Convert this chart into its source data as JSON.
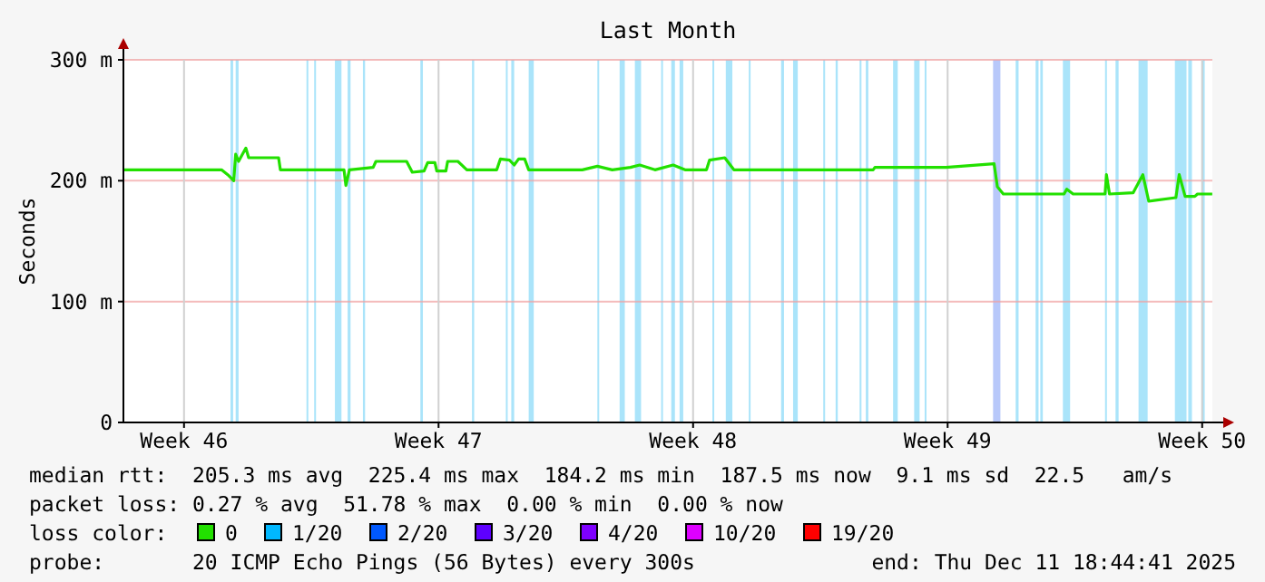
{
  "chart_data": {
    "type": "line",
    "title": "Last Month",
    "ylabel": "Seconds",
    "legend_title": "loss color:",
    "legend": "bottom",
    "grid": true,
    "xlim": [
      "2025-11-11T20:00",
      "2025-12-11T18:44"
    ],
    "xticks": [
      {
        "value": "2025-11-13T12:00",
        "label": "Week 46"
      },
      {
        "value": "2025-11-20T12:00",
        "label": "Week 47"
      },
      {
        "value": "2025-11-27T12:00",
        "label": "Week 48"
      },
      {
        "value": "2025-12-04T12:00",
        "label": "Week 49"
      },
      {
        "value": "2025-12-11T12:00",
        "label": "Week 50"
      }
    ],
    "ylim": [
      0,
      300
    ],
    "yticks": [
      0,
      {
        "value": 100,
        "label": "100 m"
      },
      {
        "value": 200,
        "label": "200 m"
      },
      {
        "value": 300,
        "label": "300 m"
      }
    ],
    "series": [
      {
        "name": "0",
        "color": "#22e000",
        "x": [
          "2025-11-11T20:00",
          "2025-11-14T12:45",
          "2025-11-14T16:50",
          "2025-11-14T20:50",
          "2025-11-14T22:05",
          "2025-11-15T00:00",
          "2025-11-15T04:50",
          "2025-11-15T06:40",
          "2025-11-16T02:25",
          "2025-11-16T03:35",
          "2025-11-17T21:35",
          "2025-11-17T22:50",
          "2025-11-18T01:10",
          "2025-11-18T16:50",
          "2025-11-18T18:40",
          "2025-11-19T14:55",
          "2025-11-19T18:40",
          "2025-11-20T02:25",
          "2025-11-20T04:50",
          "2025-11-20T09:35",
          "2025-11-20T10:50",
          "2025-11-20T16:50",
          "2025-11-20T18:00",
          "2025-11-21T00:45",
          "2025-11-21T06:40",
          "2025-11-22T02:25",
          "2025-11-22T04:50",
          "2025-11-22T10:50",
          "2025-11-22T13:55",
          "2025-11-22T16:50",
          "2025-11-22T20:50",
          "2025-11-22T23:30",
          "2025-11-24T10:50",
          "2025-11-24T20:50",
          "2025-11-25T06:40",
          "2025-11-25T18:40",
          "2025-11-26T00:45",
          "2025-11-26T10:50",
          "2025-11-26T22:50",
          "2025-11-27T06:40",
          "2025-11-27T20:50",
          "2025-11-27T22:50",
          "2025-11-28T08:55",
          "2025-11-28T14:55",
          "2025-12-02T10:50",
          "2025-12-02T12:00",
          "2025-12-04T10:50",
          "2025-12-05T18:40",
          "2025-12-05T20:50",
          "2025-12-06T00:45",
          "2025-12-07T16:50",
          "2025-12-07T18:40",
          "2025-12-07T22:50",
          "2025-12-08T19:55",
          "2025-12-08T20:50",
          "2025-12-08T22:50",
          "2025-12-09T14:25",
          "2025-12-09T20:50",
          "2025-12-10T00:45",
          "2025-12-10T18:40",
          "2025-12-10T20:50",
          "2025-12-11T00:45",
          "2025-12-11T07:10",
          "2025-12-11T08:55",
          "2025-12-11T18:40"
        ],
        "values": [
          209,
          209,
          205,
          200,
          222,
          216,
          227,
          219,
          219,
          209,
          209,
          196,
          209,
          211,
          216,
          216,
          207,
          208,
          215,
          215,
          208,
          208,
          216,
          216,
          209,
          209,
          218,
          217,
          213,
          218,
          218,
          209,
          209,
          212,
          209,
          211,
          213,
          209,
          213,
          209,
          209,
          217,
          219,
          209,
          209,
          211,
          211,
          214,
          195,
          189,
          189,
          193,
          189,
          189,
          205,
          189,
          190,
          205,
          183,
          186,
          205,
          187,
          187,
          189,
          189
        ]
      },
      {
        "name": "1/20",
        "color": "#00b8ff"
      },
      {
        "name": "2/20",
        "color": "#0059ff"
      },
      {
        "name": "3/20",
        "color": "#5e00ff"
      },
      {
        "name": "4/20",
        "color": "#7e00ff"
      },
      {
        "name": "10/20",
        "color": "#dd00ff"
      },
      {
        "name": "19/20",
        "color": "#ff0000"
      }
    ],
    "bands": [
      {
        "axis": "x",
        "from": "2025-11-14T18:40",
        "to": "2025-11-14T20:25",
        "color": "#aae4fa"
      },
      {
        "axis": "x",
        "from": "2025-11-14T22:05",
        "to": "2025-11-15T00:00",
        "color": "#aae4fa"
      },
      {
        "axis": "x",
        "from": "2025-11-16T20:50",
        "to": "2025-11-16T21:35",
        "color": "#aae4fa"
      },
      {
        "axis": "x",
        "from": "2025-11-17T01:55",
        "to": "2025-11-17T02:50",
        "color": "#aae4fa"
      },
      {
        "axis": "x",
        "from": "2025-11-17T15:35",
        "to": "2025-11-17T19:55",
        "color": "#aae4fa"
      },
      {
        "axis": "x",
        "from": "2025-11-18T00:00",
        "to": "2025-11-18T01:55",
        "color": "#aae4fa"
      },
      {
        "axis": "x",
        "from": "2025-11-18T10:05",
        "to": "2025-11-18T11:30",
        "color": "#aae4fa"
      },
      {
        "axis": "x",
        "from": "2025-11-20T00:00",
        "to": "2025-11-20T01:40",
        "color": "#aae4fa"
      },
      {
        "axis": "x",
        "from": "2025-11-21T10:05",
        "to": "2025-11-21T11:30",
        "color": "#aae4fa"
      },
      {
        "axis": "x",
        "from": "2025-11-22T08:25",
        "to": "2025-11-22T09:35",
        "color": "#aae4fa"
      },
      {
        "axis": "x",
        "from": "2025-11-22T12:00",
        "to": "2025-11-22T13:55",
        "color": "#aae4fa"
      },
      {
        "axis": "x",
        "from": "2025-11-22T23:30",
        "to": "2025-11-23T02:50",
        "color": "#aae4fa"
      },
      {
        "axis": "x",
        "from": "2025-11-24T20:50",
        "to": "2025-11-24T21:35",
        "color": "#aae4fa"
      },
      {
        "axis": "x",
        "from": "2025-11-25T11:30",
        "to": "2025-11-25T14:55",
        "color": "#aae4fa"
      },
      {
        "axis": "x",
        "from": "2025-11-25T21:35",
        "to": "2025-11-26T01:40",
        "color": "#aae4fa"
      },
      {
        "axis": "x",
        "from": "2025-11-26T14:55",
        "to": "2025-11-26T16:05",
        "color": "#aae4fa"
      },
      {
        "axis": "x",
        "from": "2025-11-26T21:35",
        "to": "2025-11-27T00:00",
        "color": "#aae4fa"
      },
      {
        "axis": "x",
        "from": "2025-11-27T03:05",
        "to": "2025-11-27T05:30",
        "color": "#aae4fa"
      },
      {
        "axis": "x",
        "from": "2025-11-28T00:45",
        "to": "2025-11-28T01:55",
        "color": "#aae4fa"
      },
      {
        "axis": "x",
        "from": "2025-11-28T09:35",
        "to": "2025-11-28T13:55",
        "color": "#aae4fa"
      },
      {
        "axis": "x",
        "from": "2025-11-29T00:45",
        "to": "2025-11-29T01:55",
        "color": "#aae4fa"
      },
      {
        "axis": "x",
        "from": "2025-11-29T22:05",
        "to": "2025-11-30T00:00",
        "color": "#aae4fa"
      },
      {
        "axis": "x",
        "from": "2025-11-30T06:00",
        "to": "2025-11-30T09:05",
        "color": "#aae4fa"
      },
      {
        "axis": "x",
        "from": "2025-12-01T01:55",
        "to": "2025-12-01T03:05",
        "color": "#aae4fa"
      },
      {
        "axis": "x",
        "from": "2025-12-01T10:05",
        "to": "2025-12-01T11:30",
        "color": "#aae4fa"
      },
      {
        "axis": "x",
        "from": "2025-12-02T01:55",
        "to": "2025-12-02T03:05",
        "color": "#aae4fa"
      },
      {
        "axis": "x",
        "from": "2025-12-02T06:00",
        "to": "2025-12-02T07:40",
        "color": "#aae4fa"
      },
      {
        "axis": "x",
        "from": "2025-12-03T00:00",
        "to": "2025-12-03T03:05",
        "color": "#aae4fa"
      },
      {
        "axis": "x",
        "from": "2025-12-03T13:55",
        "to": "2025-12-03T17:30",
        "color": "#aae4fa"
      },
      {
        "axis": "x",
        "from": "2025-12-03T20:50",
        "to": "2025-12-03T21:35",
        "color": "#aae4fa"
      },
      {
        "axis": "x",
        "from": "2025-12-05T18:00",
        "to": "2025-12-05T22:50",
        "color": "#b8c8fa"
      },
      {
        "axis": "x",
        "from": "2025-12-06T08:55",
        "to": "2025-12-06T10:50",
        "color": "#aae4fa"
      },
      {
        "axis": "x",
        "from": "2025-12-06T22:05",
        "to": "2025-12-07T00:00",
        "color": "#aae4fa"
      },
      {
        "axis": "x",
        "from": "2025-12-07T01:10",
        "to": "2025-12-07T02:50",
        "color": "#aae4fa"
      },
      {
        "axis": "x",
        "from": "2025-12-07T16:05",
        "to": "2025-12-07T20:50",
        "color": "#aae4fa"
      },
      {
        "axis": "x",
        "from": "2025-12-08T19:55",
        "to": "2025-12-08T21:05",
        "color": "#aae4fa"
      },
      {
        "axis": "x",
        "from": "2025-12-09T02:50",
        "to": "2025-12-09T04:50",
        "color": "#aae4fa"
      },
      {
        "axis": "x",
        "from": "2025-12-09T18:00",
        "to": "2025-12-10T00:00",
        "color": "#aae4fa"
      },
      {
        "axis": "x",
        "from": "2025-12-10T18:00",
        "to": "2025-12-11T01:40",
        "color": "#aae4fa"
      },
      {
        "axis": "x",
        "from": "2025-12-11T02:50",
        "to": "2025-12-11T05:15",
        "color": "#aae4fa"
      },
      {
        "axis": "x",
        "from": "2025-12-11T11:30",
        "to": "2025-12-11T13:40",
        "color": "#aae4fa"
      }
    ],
    "annotations": [
      "median rtt:  205.3 ms avg  225.4 ms max  184.2 ms min  187.5 ms now  9.1 ms sd  22.5   am/s",
      "packet loss: 0.27 % avg  51.78 % max  0.00 % min  0.00 % now",
      "probe:       20 ICMP Echo Pings (56 Bytes) every 300s",
      "end: Thu Dec 11 18:44:41 2025"
    ]
  }
}
